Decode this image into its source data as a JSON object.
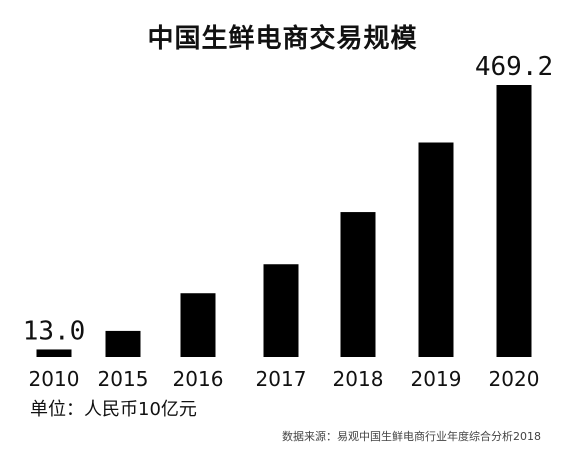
{
  "chart_data": {
    "type": "bar",
    "title": "中国生鲜电商交易规模",
    "categories": [
      "2010",
      "2015",
      "2016",
      "2017",
      "2018",
      "2019",
      "2020"
    ],
    "values": [
      13.0,
      45,
      110,
      160,
      250,
      370,
      469.2
    ],
    "data_labels": [
      "13.0",
      "",
      "",
      "",
      "",
      "",
      "469.2"
    ],
    "unit": "单位：人民币10亿元",
    "source": "数据来源：易观中国生鲜电商行业年度综合分析2018",
    "ylim": [
      0,
      469.2
    ],
    "grid": false,
    "bar_color": "#000000"
  }
}
